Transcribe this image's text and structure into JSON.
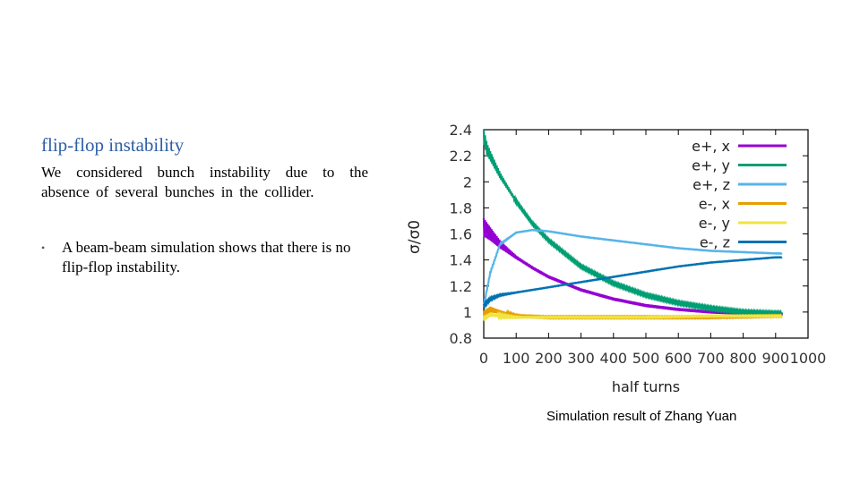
{
  "slide": {
    "title": "flip-flop instability",
    "paragraph": "We considered bunch instability due to the absence of several bunches in the collider.",
    "bullets": [
      "A beam-beam simulation shows that there is no flip-flop instability."
    ],
    "caption": "Simulation result of Zhang Yuan"
  },
  "chart_data": {
    "type": "line",
    "title": "",
    "xlabel": "half turns",
    "ylabel": "σ/σ0",
    "xlim": [
      0,
      1000
    ],
    "ylim": [
      0.8,
      2.4
    ],
    "xticks": [
      "0",
      "100",
      "200",
      "300",
      "400",
      "500",
      "600",
      "700",
      "800",
      "900",
      "1000"
    ],
    "yticks": [
      "0.8",
      "1",
      "1.2",
      "1.4",
      "1.6",
      "1.8",
      "2",
      "2.2",
      "2.4"
    ],
    "legend_position": "top-right",
    "grid": false,
    "series": [
      {
        "name": "e+, x",
        "color": "#9400d3",
        "x": [
          0,
          20,
          50,
          100,
          150,
          200,
          300,
          400,
          500,
          600,
          700,
          800,
          900,
          920
        ],
        "y": [
          1.65,
          1.6,
          1.52,
          1.42,
          1.34,
          1.27,
          1.17,
          1.1,
          1.05,
          1.02,
          1.0,
          0.99,
          0.98,
          0.98
        ],
        "noise": 0.07
      },
      {
        "name": "e+, y",
        "color": "#009e73",
        "x": [
          0,
          10,
          50,
          100,
          150,
          200,
          300,
          400,
          500,
          600,
          700,
          800,
          900,
          920
        ],
        "y": [
          2.35,
          2.25,
          2.05,
          1.85,
          1.68,
          1.55,
          1.35,
          1.22,
          1.13,
          1.07,
          1.03,
          1.0,
          0.99,
          0.99
        ],
        "noise": 0.05
      },
      {
        "name": "e+, z",
        "color": "#56b4e9",
        "x": [
          0,
          20,
          50,
          100,
          150,
          200,
          300,
          400,
          500,
          600,
          700,
          800,
          900,
          920
        ],
        "y": [
          1.05,
          1.3,
          1.52,
          1.61,
          1.63,
          1.62,
          1.58,
          1.55,
          1.52,
          1.49,
          1.47,
          1.46,
          1.45,
          1.45
        ],
        "noise": 0.01
      },
      {
        "name": "e-, x",
        "color": "#e69f00",
        "x": [
          0,
          20,
          50,
          100,
          200,
          300,
          500,
          700,
          900,
          920
        ],
        "y": [
          0.98,
          1.02,
          1.0,
          0.97,
          0.96,
          0.96,
          0.96,
          0.96,
          0.97,
          0.97
        ],
        "noise": 0.03
      },
      {
        "name": "e-, y",
        "color": "#f0e442",
        "x": [
          0,
          20,
          50,
          100,
          200,
          300,
          500,
          700,
          900,
          920
        ],
        "y": [
          0.95,
          0.98,
          0.97,
          0.96,
          0.96,
          0.96,
          0.96,
          0.97,
          0.97,
          0.97
        ],
        "noise": 0.02
      },
      {
        "name": "e-, z",
        "color": "#0072b2",
        "x": [
          0,
          20,
          50,
          100,
          200,
          300,
          400,
          500,
          600,
          700,
          800,
          900,
          920
        ],
        "y": [
          1.05,
          1.1,
          1.13,
          1.15,
          1.19,
          1.23,
          1.27,
          1.31,
          1.35,
          1.38,
          1.4,
          1.42,
          1.42
        ],
        "noise": 0.01
      }
    ]
  }
}
